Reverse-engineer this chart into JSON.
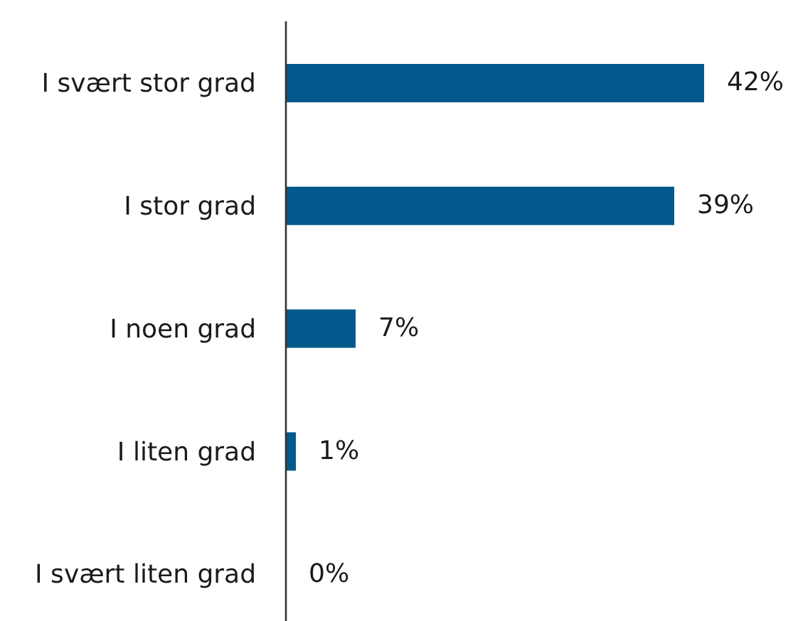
{
  "chart_data": {
    "type": "bar",
    "orientation": "horizontal",
    "categories": [
      "I svært stor grad",
      "I stor grad",
      "I noen grad",
      "I liten grad",
      "I svært liten grad"
    ],
    "values": [
      42,
      39,
      7,
      1,
      0
    ],
    "color": "#03598c",
    "value_labels": [
      "42%",
      "39%",
      "7%",
      "1%",
      "0%"
    ]
  }
}
